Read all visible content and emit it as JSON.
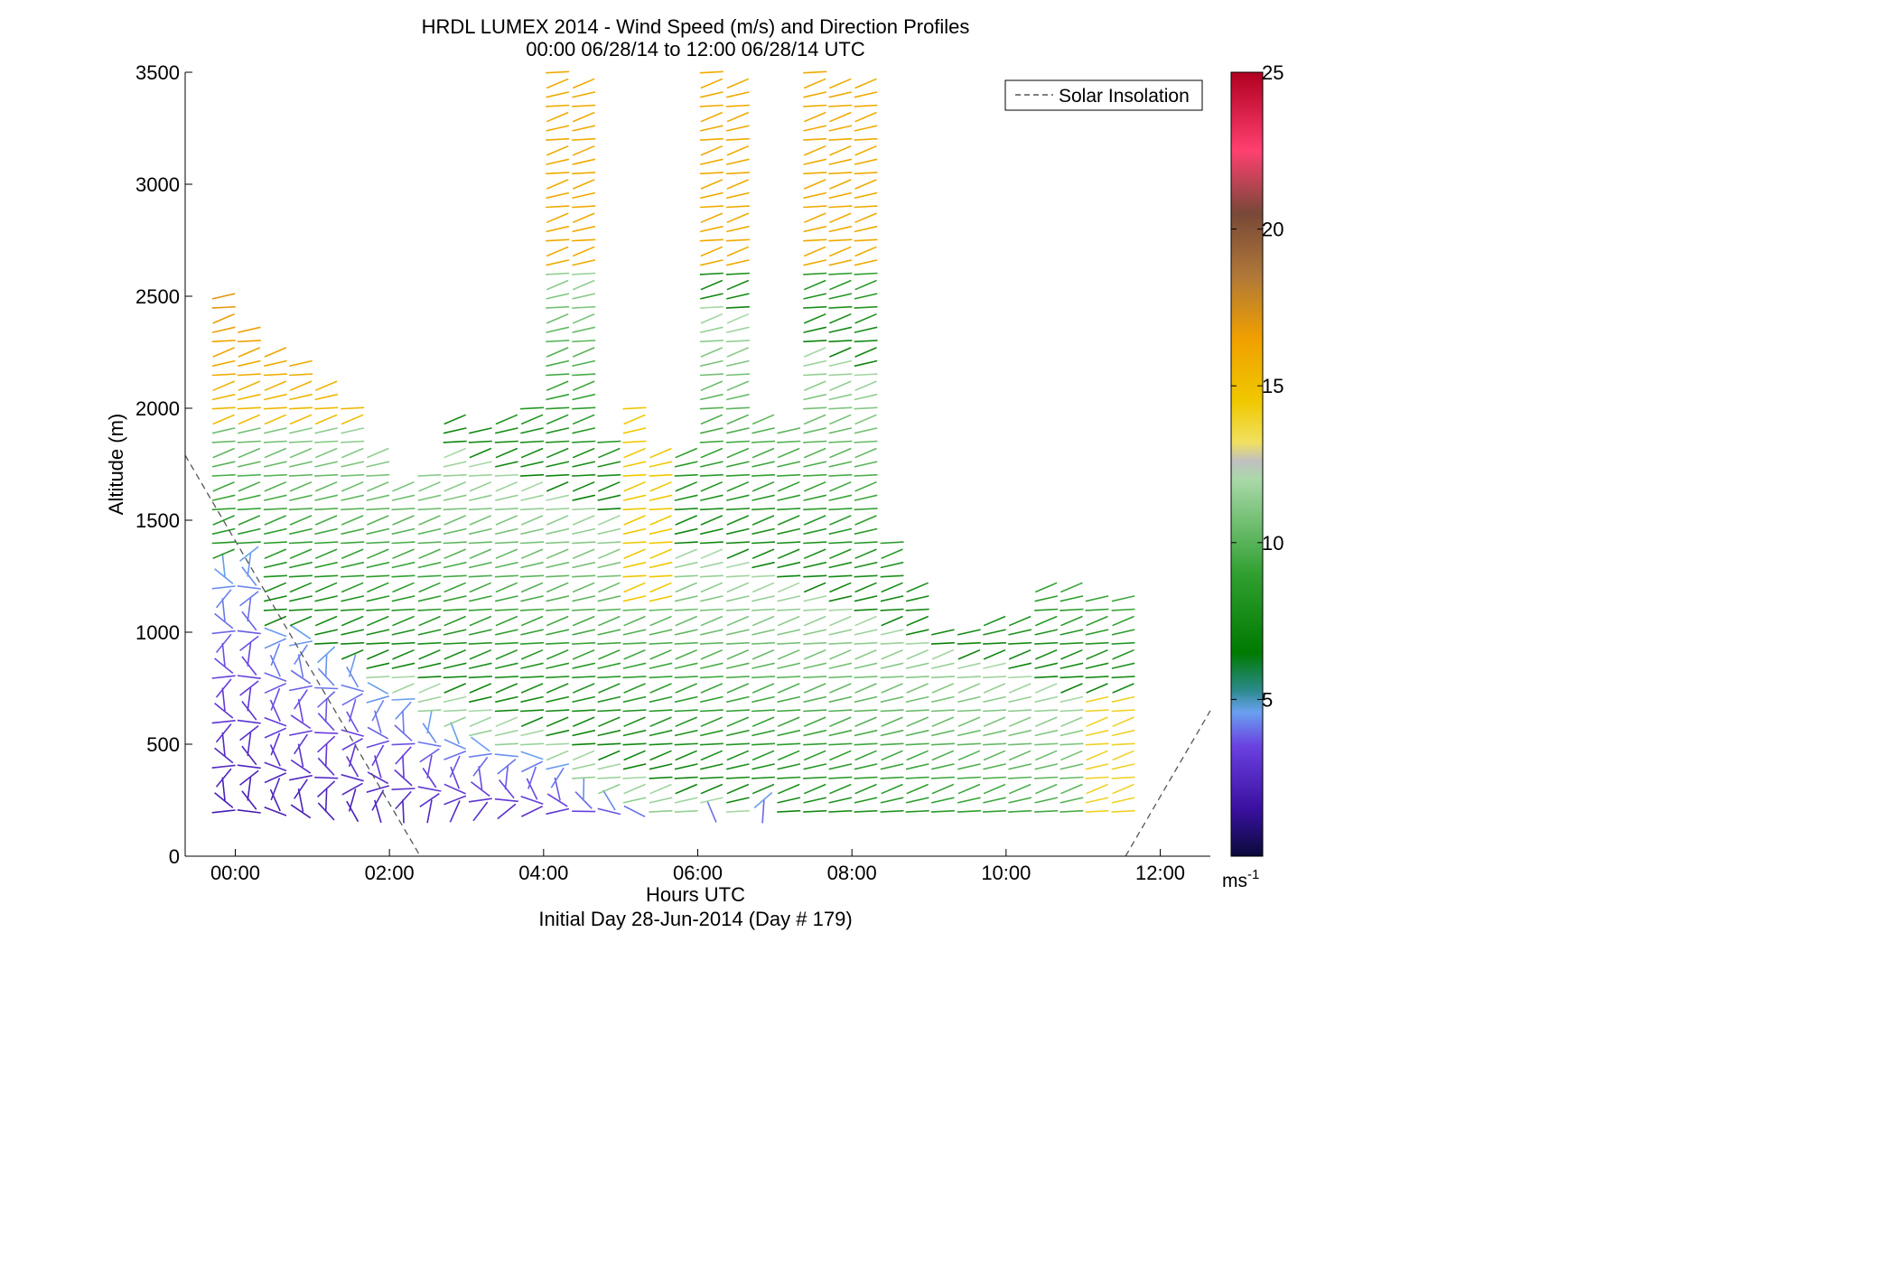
{
  "chart_data": {
    "type": "other",
    "title": "HRDL LUMEX 2014 - Wind Speed (m/s) and Direction Profiles",
    "subtitle": "00:00 06/28/14 to 12:00 06/28/14  UTC",
    "xlabel": "Hours UTC",
    "xlabel2": "Initial Day 28-Jun-2014 (Day # 179)",
    "ylabel": "Altitude (m)",
    "xlim": [
      -0.65,
      12.65
    ],
    "ylim": [
      0,
      3500
    ],
    "x_ticks": [
      0,
      2,
      4,
      6,
      8,
      10,
      12
    ],
    "x_tick_labels": [
      "00:00",
      "02:00",
      "04:00",
      "06:00",
      "08:00",
      "10:00",
      "12:00"
    ],
    "y_ticks": [
      0,
      500,
      1000,
      1500,
      2000,
      2500,
      3000,
      3500
    ],
    "y_tick_labels": [
      "0",
      "500",
      "1000",
      "1500",
      "2000",
      "2500",
      "3000",
      "3500"
    ],
    "legend": {
      "entries": [
        "Solar Insolation"
      ],
      "position": "top-right"
    },
    "colorbar": {
      "range": [
        0,
        25
      ],
      "ticks": [
        5,
        10,
        15,
        20,
        25
      ],
      "tick_labels": [
        "5",
        "10",
        "15",
        "20",
        "25"
      ],
      "unit_label": "ms",
      "unit_exponent": "-1",
      "colors": [
        "#0a0a3a",
        "#3a10a0",
        "#6a40e0",
        "#6aa0f0",
        "#2a8a8a",
        "#007a00",
        "#30a030",
        "#a8d8a8",
        "#c0c0c0",
        "#f0e060",
        "#f0c800",
        "#f0a000",
        "#b07838",
        "#784838",
        "#ff4070",
        "#b00020"
      ]
    },
    "solar_insolation": [
      {
        "x": -0.65,
        "y": 1790
      },
      {
        "x": 2.4,
        "y": 0
      },
      {
        "x": 11.55,
        "y": 0
      },
      {
        "x": 12.65,
        "y": 650
      }
    ],
    "wind_profiles": [
      {
        "x": -0.15,
        "top": 2520,
        "low_band_top": 1320
      },
      {
        "x": 0.18,
        "top": 2380,
        "low_band_top": 1380
      },
      {
        "x": 0.52,
        "top": 2250,
        "low_band_top": 1050
      },
      {
        "x": 0.85,
        "top": 2240,
        "low_band_top": 1020
      },
      {
        "x": 1.18,
        "top": 2110,
        "low_band_top": 920
      },
      {
        "x": 1.52,
        "top": 2020,
        "low_band_top": 900
      },
      {
        "x": 1.85,
        "top": 1800,
        "low_band_top": 760
      },
      {
        "x": 2.18,
        "top": 1680,
        "low_band_top": 720
      },
      {
        "x": 2.52,
        "top": 1720,
        "low_band_top": 620
      },
      {
        "x": 2.85,
        "top": 1950,
        "low_band_top": 560
      },
      {
        "x": 3.18,
        "top": 1900,
        "low_band_top": 520
      },
      {
        "x": 3.52,
        "top": 1950,
        "low_band_top": 490
      },
      {
        "x": 3.85,
        "top": 2020,
        "low_band_top": 470
      },
      {
        "x": 4.18,
        "top": 3500,
        "low_band_top": 420
      },
      {
        "x": 4.52,
        "top": 3480,
        "low_band_top": 330
      },
      {
        "x": 4.85,
        "top": 1850,
        "low_band_top": 280
      },
      {
        "x": 5.18,
        "top": 2030,
        "low_band_top": 250
      },
      {
        "x": 5.52,
        "top": 1800,
        "low_band_top": 0
      },
      {
        "x": 5.85,
        "top": 1820,
        "low_band_top": 0
      },
      {
        "x": 6.18,
        "top": 3500,
        "low_band_top": 250
      },
      {
        "x": 6.52,
        "top": 3490,
        "low_band_top": 0
      },
      {
        "x": 6.85,
        "top": 1950,
        "low_band_top": 260
      },
      {
        "x": 7.18,
        "top": 1910,
        "low_band_top": 0
      },
      {
        "x": 7.52,
        "top": 3500,
        "low_band_top": 0
      },
      {
        "x": 7.85,
        "top": 3490,
        "low_band_top": 0
      },
      {
        "x": 8.18,
        "top": 3480,
        "low_band_top": 0
      },
      {
        "x": 8.52,
        "top": 1420,
        "low_band_top": 0
      },
      {
        "x": 8.85,
        "top": 1200,
        "low_band_top": 0
      },
      {
        "x": 9.18,
        "top": 1000,
        "low_band_top": 0
      },
      {
        "x": 9.52,
        "top": 1030,
        "low_band_top": 0
      },
      {
        "x": 9.85,
        "top": 1060,
        "low_band_top": 0
      },
      {
        "x": 10.18,
        "top": 1090,
        "low_band_top": 0
      },
      {
        "x": 10.52,
        "top": 1200,
        "low_band_top": 0
      },
      {
        "x": 10.85,
        "top": 1210,
        "low_band_top": 0
      },
      {
        "x": 11.18,
        "top": 1180,
        "low_band_top": 0
      },
      {
        "x": 11.52,
        "top": 1150,
        "low_band_top": 0
      }
    ]
  }
}
